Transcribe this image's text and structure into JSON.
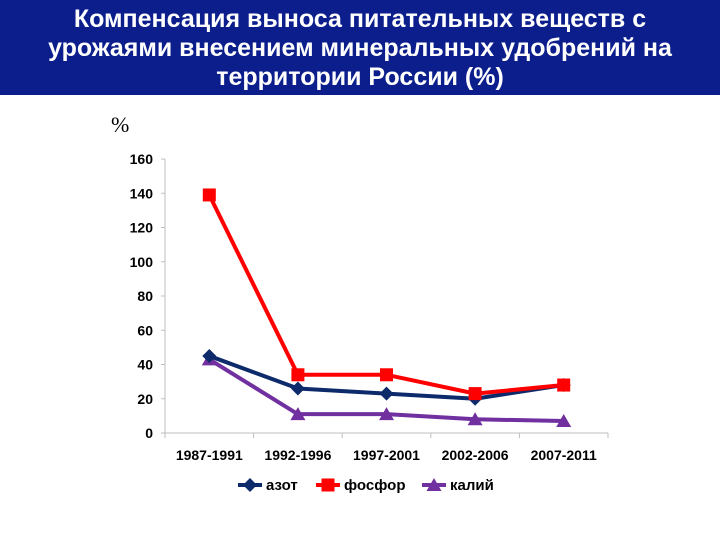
{
  "title": {
    "line1": "Компенсация выноса питательных веществ с",
    "line2": "урожаями внесением минеральных удобрений на",
    "line3": "территории России (%)"
  },
  "colors": {
    "title_bg": "#0b1e8c",
    "title_text": "#ffffff"
  },
  "chart_data": {
    "type": "line",
    "title": "Компенсация выноса питательных веществ с урожаями внесением минеральных удобрений на территории России (%)",
    "ylabel": "%",
    "xlabel": "",
    "categories": [
      "1987-1991",
      "1992-1996",
      "1997-2001",
      "2002-2006",
      "2007-2011"
    ],
    "ylim": [
      0,
      160
    ],
    "yticks": [
      0,
      20,
      40,
      60,
      80,
      100,
      120,
      140,
      160
    ],
    "grid": false,
    "legend_position": "bottom",
    "series": [
      {
        "name": "азот",
        "color": "#0d2a6b",
        "marker": "diamond",
        "values": [
          45,
          26,
          23,
          20,
          28
        ]
      },
      {
        "name": "фосфор",
        "color": "#ff0000",
        "marker": "square",
        "values": [
          139,
          34,
          34,
          23,
          28
        ]
      },
      {
        "name": "калий",
        "color": "#7030a0",
        "marker": "triangle",
        "values": [
          43,
          11,
          11,
          8,
          7
        ]
      }
    ]
  }
}
